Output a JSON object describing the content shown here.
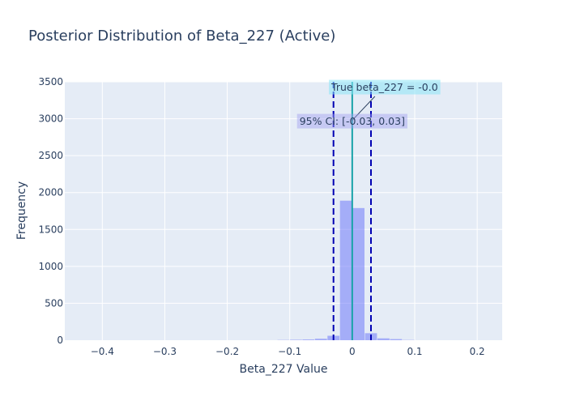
{
  "chart_data": {
    "type": "bar",
    "title": "Posterior Distribution of Beta_227 (Active)",
    "xlabel": "Beta_227 Value",
    "ylabel": "Frequency",
    "xlim": [
      -0.46,
      0.24
    ],
    "ylim": [
      0,
      3500
    ],
    "x_ticks": [
      -0.4,
      -0.3,
      -0.2,
      -0.1,
      0,
      0.1,
      0.2
    ],
    "x_tick_labels": [
      "−0.4",
      "−0.3",
      "−0.2",
      "−0.1",
      "0",
      "0.1",
      "0.2"
    ],
    "y_ticks": [
      0,
      500,
      1000,
      1500,
      2000,
      2500,
      3000,
      3500
    ],
    "y_tick_labels": [
      "0",
      "500",
      "1000",
      "1500",
      "2000",
      "2500",
      "3000",
      "3500"
    ],
    "bin_width": 0.02,
    "bins": [
      {
        "x0": -0.12,
        "x1": -0.1,
        "value": 3
      },
      {
        "x0": -0.1,
        "x1": -0.08,
        "value": 6
      },
      {
        "x0": -0.08,
        "x1": -0.06,
        "value": 10
      },
      {
        "x0": -0.06,
        "x1": -0.04,
        "value": 20
      },
      {
        "x0": -0.04,
        "x1": -0.02,
        "value": 60
      },
      {
        "x0": -0.02,
        "x1": 0.0,
        "value": 1890
      },
      {
        "x0": 0.0,
        "x1": 0.02,
        "value": 1790
      },
      {
        "x0": 0.02,
        "x1": 0.04,
        "value": 95
      },
      {
        "x0": 0.04,
        "x1": 0.06,
        "value": 25
      },
      {
        "x0": 0.06,
        "x1": 0.08,
        "value": 15
      },
      {
        "x0": 0.08,
        "x1": 0.1,
        "value": 3
      }
    ],
    "bar_color": "#636efa",
    "true_value": 0.0,
    "true_value_color": "#17a2a8",
    "ci_lower": -0.03,
    "ci_upper": 0.03,
    "ci_color": "#0000b3",
    "annotations": {
      "true_label": "True beta_227 = -0.0",
      "ci_label": "95% CI: [-0.03, 0.03]"
    },
    "plot_background": "#e5ecf6",
    "grid": true
  }
}
